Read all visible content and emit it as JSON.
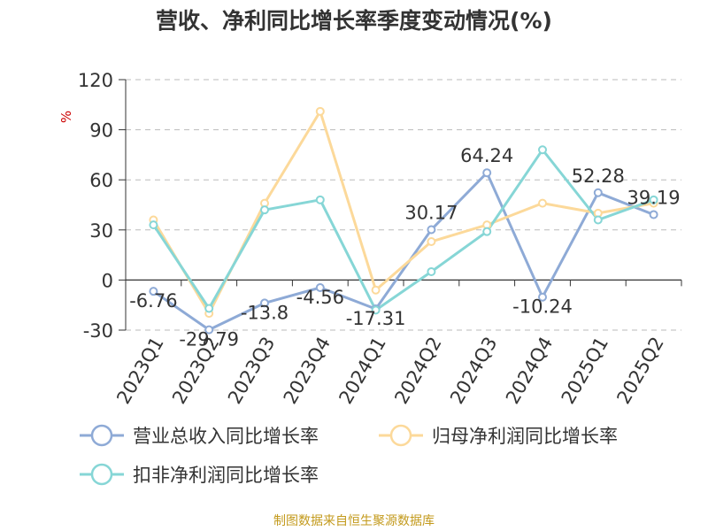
{
  "colors": {
    "series": [
      "#8eaad6",
      "#fcd99a",
      "#86d6d6"
    ],
    "axis": "#333333",
    "grid": "#bbbbbb",
    "unit": "#cc0000",
    "footer": "#c39a1c"
  },
  "footer": {
    "source": "制图数据来自恒生聚源数据库"
  },
  "chart_data": {
    "type": "line",
    "title": "营收、净利同比增长率季度变动情况(%)",
    "ylabel": "%",
    "xlabel": "",
    "ylim": [
      -30,
      120
    ],
    "yticks": [
      -30,
      0,
      30,
      60,
      90,
      120
    ],
    "grid": true,
    "legend_position": "bottom",
    "categories": [
      "2023Q1",
      "2023Q2",
      "2023Q3",
      "2023Q4",
      "2024Q1",
      "2024Q2",
      "2024Q3",
      "2024Q4",
      "2025Q1",
      "2025Q2"
    ],
    "series": [
      {
        "name": "营业总收入同比增长率",
        "values": [
          -6.76,
          -29.79,
          -13.8,
          -4.56,
          -17.31,
          30.17,
          64.24,
          -10.24,
          52.28,
          39.19
        ],
        "labels": [
          "-6.76",
          "-29.79",
          "-13.8",
          "-4.56",
          "-17.31",
          "30.17",
          "64.24",
          "-10.24",
          "52.28",
          "39.19"
        ]
      },
      {
        "name": "归母净利润同比增长率",
        "values": [
          36,
          -20,
          46,
          101,
          -6,
          23,
          33,
          46,
          40,
          46
        ]
      },
      {
        "name": "扣非净利润同比增长率",
        "values": [
          33,
          -17,
          42,
          48,
          -18,
          5,
          29,
          78,
          36,
          48
        ]
      }
    ]
  }
}
